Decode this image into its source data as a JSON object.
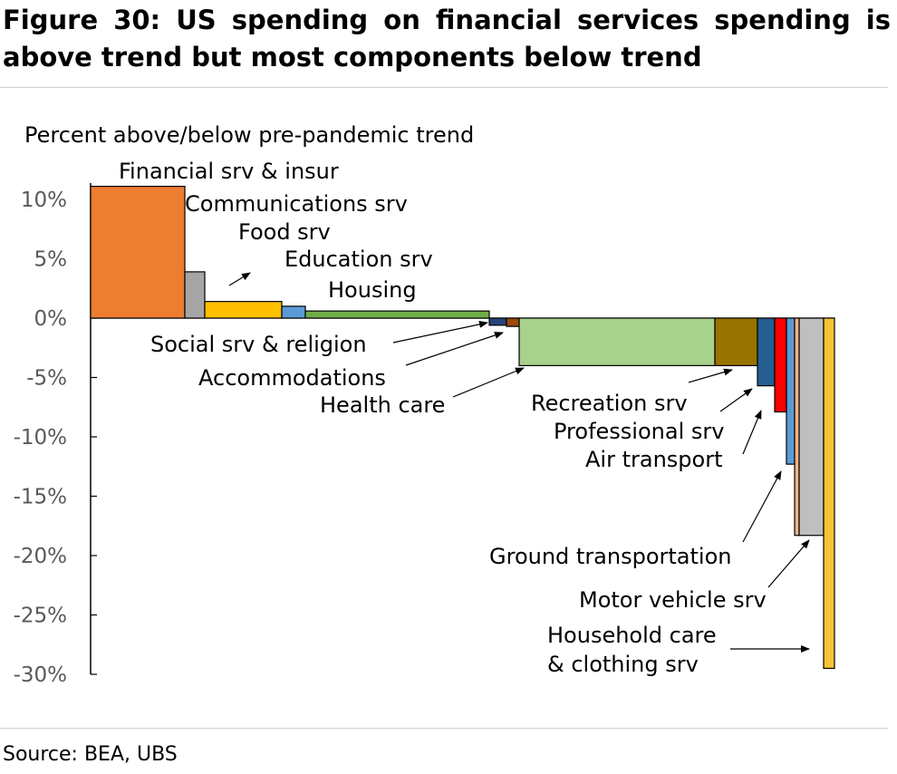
{
  "title": "Figure 30: US spending on financial services spending is above trend but most components below trend",
  "source": "Source: BEA, UBS",
  "chart_data": {
    "type": "bar",
    "subtype": "variable-width bar (bar width = share of services spending)",
    "ylabel": "Percent above/below pre-pandemic trend",
    "ylim": [
      -30,
      11
    ],
    "yticks": [
      "10%",
      "5%",
      "0%",
      "-5%",
      "-10%",
      "-15%",
      "-20%",
      "-25%",
      "-30%"
    ],
    "ytick_values": [
      10,
      5,
      0,
      -5,
      -10,
      -15,
      -20,
      -25,
      -30
    ],
    "grid": false,
    "legend": "none",
    "categories": [
      {
        "label": "Financial srv & insur",
        "value": 11.1,
        "color": "#ED7D31"
      },
      {
        "label": "Communications srv",
        "value": 3.9,
        "color": "#A5A5A5"
      },
      {
        "label": "Food srv",
        "value": 1.4,
        "color": "#FFC000"
      },
      {
        "label": "Education srv",
        "value": 1.0,
        "color": "#5B9BD5"
      },
      {
        "label": "Housing",
        "value": 0.6,
        "color": "#70AD47"
      },
      {
        "label": "Social srv & religion",
        "value": -0.6,
        "color": "#264478"
      },
      {
        "label": "Accommodations",
        "value": -0.7,
        "color": "#9E480E"
      },
      {
        "label": "Health care",
        "value": -4.0,
        "color": "#A9D18E"
      },
      {
        "label": "Recreation srv",
        "value": -4.0,
        "color": "#997300"
      },
      {
        "label": "Professional srv",
        "value": -5.7,
        "color": "#255E91"
      },
      {
        "label": "Air transport",
        "value": -7.9,
        "color": "#FF0000"
      },
      {
        "label": "Ground transportation",
        "value": -12.3,
        "color": "#5B9BD5"
      },
      {
        "label": "Motor vehicle srv",
        "value": -18.3,
        "color": "#F4B183"
      },
      {
        "label": "Household care & clothing srv",
        "value": -18.3,
        "color": "#BFBFBF"
      },
      {
        "label": "",
        "value": -29.5,
        "color": "#F7C436"
      }
    ],
    "label_lines": {
      "household": [
        "Household care",
        "& clothing srv"
      ]
    }
  }
}
